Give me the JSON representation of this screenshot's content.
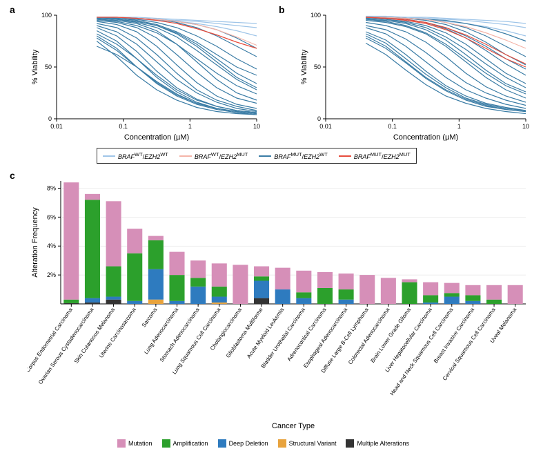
{
  "panels": {
    "a": {
      "label": "a"
    },
    "b": {
      "label": "b"
    },
    "c": {
      "label": "c"
    }
  },
  "lineCharts": {
    "shared": {
      "ylabel": "% Viability",
      "xlabel": "Concentration (µM)",
      "xlim": [
        0.01,
        10
      ],
      "xticks": [
        0.01,
        0.1,
        1,
        10
      ],
      "xticklabels": [
        "0.01",
        "0.1",
        "1",
        "10"
      ],
      "ylim": [
        0,
        100
      ],
      "yticks": [
        0,
        50,
        100
      ],
      "yticklabels": [
        "0",
        "50",
        "100"
      ],
      "scale": "log",
      "background": "#ffffff",
      "axis_color": "#000000",
      "label_fontsize": 11,
      "tick_fontsize": 9
    },
    "colors": {
      "wt_wt": "#9fc5e8",
      "wt_mut": "#f4b4a8",
      "mut_wt": "#3a7ca5",
      "mut_mut": "#e74c3c"
    },
    "a": {
      "series": [
        {
          "color_key": "wt_wt",
          "y": [
            98,
            98,
            97,
            96,
            95,
            94,
            92,
            90,
            88
          ]
        },
        {
          "color_key": "wt_wt",
          "y": [
            98,
            98,
            98,
            97,
            96,
            95,
            94,
            93,
            92
          ]
        },
        {
          "color_key": "wt_wt",
          "y": [
            97,
            97,
            96,
            95,
            94,
            92,
            89,
            85,
            80
          ]
        },
        {
          "color_key": "mut_wt",
          "y": [
            97,
            96,
            94,
            90,
            82,
            70,
            55,
            40,
            30
          ]
        },
        {
          "color_key": "mut_wt",
          "y": [
            96,
            95,
            92,
            85,
            72,
            55,
            38,
            25,
            18
          ]
        },
        {
          "color_key": "mut_wt",
          "y": [
            95,
            93,
            88,
            78,
            62,
            45,
            30,
            20,
            15
          ]
        },
        {
          "color_key": "mut_wt",
          "y": [
            94,
            91,
            84,
            70,
            52,
            35,
            22,
            14,
            10
          ]
        },
        {
          "color_key": "mut_wt",
          "y": [
            92,
            88,
            78,
            62,
            44,
            28,
            18,
            12,
            8
          ]
        },
        {
          "color_key": "mut_wt",
          "y": [
            90,
            84,
            72,
            55,
            38,
            25,
            16,
            10,
            7
          ]
        },
        {
          "color_key": "mut_wt",
          "y": [
            88,
            80,
            65,
            46,
            30,
            19,
            12,
            8,
            6
          ]
        },
        {
          "color_key": "mut_wt",
          "y": [
            85,
            75,
            58,
            40,
            26,
            16,
            10,
            7,
            5
          ]
        },
        {
          "color_key": "mut_wt",
          "y": [
            80,
            68,
            50,
            34,
            22,
            14,
            9,
            6,
            4
          ]
        },
        {
          "color_key": "mut_wt",
          "y": [
            75,
            60,
            42,
            28,
            18,
            11,
            7,
            5,
            4
          ]
        },
        {
          "color_key": "mut_wt",
          "y": [
            98,
            97,
            95,
            91,
            84,
            74,
            62,
            50,
            42
          ]
        },
        {
          "color_key": "mut_wt",
          "y": [
            98,
            97,
            96,
            93,
            88,
            80,
            70,
            58,
            48
          ]
        },
        {
          "color_key": "mut_wt",
          "y": [
            97,
            96,
            93,
            88,
            79,
            66,
            52,
            38,
            28
          ]
        },
        {
          "color_key": "mut_wt",
          "y": [
            98,
            98,
            97,
            96,
            93,
            88,
            80,
            70,
            60
          ]
        },
        {
          "color_key": "mut_wt",
          "y": [
            98,
            98,
            97,
            96,
            94,
            91,
            86,
            78,
            68
          ]
        },
        {
          "color_key": "mut_wt",
          "y": [
            97,
            96,
            94,
            90,
            83,
            72,
            58,
            44,
            34
          ]
        },
        {
          "color_key": "mut_wt",
          "y": [
            96,
            94,
            90,
            83,
            72,
            58,
            44,
            32,
            24
          ]
        },
        {
          "color_key": "mut_wt",
          "y": [
            70,
            62,
            50,
            36,
            24,
            15,
            10,
            7,
            5
          ]
        },
        {
          "color_key": "mut_wt",
          "y": [
            82,
            72,
            58,
            42,
            28,
            18,
            12,
            8,
            6
          ]
        },
        {
          "color_key": "mut_wt",
          "y": [
            78,
            66,
            50,
            35,
            23,
            15,
            10,
            7,
            5
          ]
        },
        {
          "color_key": "wt_mut",
          "y": [
            98,
            98,
            97,
            96,
            94,
            91,
            86,
            79,
            71
          ]
        },
        {
          "color_key": "mut_mut",
          "y": [
            98,
            98,
            97,
            95,
            92,
            87,
            81,
            74,
            68
          ]
        }
      ]
    },
    "b": {
      "series": [
        {
          "color_key": "wt_wt",
          "y": [
            99,
            99,
            98,
            98,
            97,
            96,
            95,
            94,
            92
          ]
        },
        {
          "color_key": "wt_wt",
          "y": [
            98,
            98,
            98,
            97,
            96,
            95,
            93,
            91,
            88
          ]
        },
        {
          "color_key": "wt_wt",
          "y": [
            98,
            98,
            97,
            96,
            94,
            92,
            89,
            85,
            80
          ]
        },
        {
          "color_key": "mut_wt",
          "y": [
            98,
            97,
            96,
            93,
            88,
            80,
            70,
            58,
            48
          ]
        },
        {
          "color_key": "mut_wt",
          "y": [
            97,
            96,
            94,
            90,
            83,
            72,
            58,
            44,
            34
          ]
        },
        {
          "color_key": "mut_wt",
          "y": [
            96,
            95,
            92,
            86,
            76,
            62,
            47,
            34,
            26
          ]
        },
        {
          "color_key": "mut_wt",
          "y": [
            95,
            93,
            89,
            82,
            70,
            55,
            40,
            28,
            20
          ]
        },
        {
          "color_key": "mut_wt",
          "y": [
            93,
            90,
            84,
            74,
            60,
            44,
            31,
            22,
            16
          ]
        },
        {
          "color_key": "mut_wt",
          "y": [
            90,
            86,
            77,
            64,
            49,
            35,
            25,
            18,
            13
          ]
        },
        {
          "color_key": "mut_wt",
          "y": [
            88,
            82,
            70,
            55,
            40,
            28,
            20,
            14,
            10
          ]
        },
        {
          "color_key": "mut_wt",
          "y": [
            84,
            76,
            62,
            46,
            32,
            22,
            15,
            11,
            8
          ]
        },
        {
          "color_key": "mut_wt",
          "y": [
            80,
            70,
            55,
            40,
            28,
            19,
            13,
            9,
            7
          ]
        },
        {
          "color_key": "mut_wt",
          "y": [
            73,
            62,
            47,
            33,
            22,
            15,
            10,
            7,
            5
          ]
        },
        {
          "color_key": "mut_wt",
          "y": [
            98,
            98,
            97,
            95,
            91,
            84,
            74,
            62,
            52
          ]
        },
        {
          "color_key": "mut_wt",
          "y": [
            98,
            98,
            97,
            96,
            93,
            88,
            80,
            70,
            60
          ]
        },
        {
          "color_key": "mut_wt",
          "y": [
            98,
            97,
            96,
            93,
            87,
            78,
            66,
            53,
            42
          ]
        },
        {
          "color_key": "mut_wt",
          "y": [
            97,
            96,
            93,
            88,
            79,
            67,
            53,
            40,
            30
          ]
        },
        {
          "color_key": "mut_wt",
          "y": [
            98,
            98,
            97,
            96,
            95,
            92,
            88,
            82,
            75
          ]
        },
        {
          "color_key": "mut_wt",
          "y": [
            96,
            94,
            90,
            83,
            72,
            58,
            44,
            32,
            24
          ]
        },
        {
          "color_key": "mut_wt",
          "y": [
            78,
            68,
            54,
            39,
            27,
            18,
            12,
            9,
            7
          ]
        },
        {
          "color_key": "mut_wt",
          "y": [
            82,
            73,
            58,
            43,
            30,
            20,
            14,
            10,
            8
          ]
        },
        {
          "color_key": "wt_mut",
          "y": [
            98,
            98,
            97,
            96,
            93,
            89,
            83,
            76,
            68
          ]
        },
        {
          "color_key": "mut_mut",
          "y": [
            98,
            97,
            96,
            93,
            88,
            81,
            72,
            62,
            53
          ]
        },
        {
          "color_key": "mut_mut",
          "y": [
            98,
            97,
            95,
            92,
            86,
            78,
            68,
            58,
            50
          ]
        }
      ]
    }
  },
  "legend": {
    "items": [
      {
        "color_key": "wt_wt",
        "braf": "WT",
        "ezh2": "WT"
      },
      {
        "color_key": "wt_mut",
        "braf": "WT",
        "ezh2": "MUT"
      },
      {
        "color_key": "mut_wt",
        "braf": "MUT",
        "ezh2": "WT"
      },
      {
        "color_key": "mut_mut",
        "braf": "MUT",
        "ezh2": "MUT"
      }
    ],
    "braf_label": "BRAF",
    "ezh2_label": "EZH2",
    "sep": "/"
  },
  "barChart": {
    "ylabel": "Alteration Frequency",
    "xlabel": "Cancer Type",
    "ylim": [
      0,
      8.5
    ],
    "yticks": [
      2,
      4,
      6,
      8
    ],
    "yticklabels": [
      "2%",
      "4%",
      "6%",
      "8%"
    ],
    "label_fontsize": 11,
    "tick_fontsize": 9,
    "background": "#ffffff",
    "grid_color": "#dddddd",
    "colors": {
      "mutation": "#d68fb8",
      "amplification": "#2ca02c",
      "deep_deletion": "#2e7bbf",
      "structural_variant": "#e8a33d",
      "multiple": "#333333"
    },
    "categories": [
      {
        "label": "Uterine Corpus Endometrial Carcinoma",
        "stacks": {
          "mutation": 8.1,
          "amplification": 0.25,
          "deep_deletion": 0,
          "structural_variant": 0,
          "multiple": 0.05
        }
      },
      {
        "label": "Ovarian Serous Cystadenocarcinoma",
        "stacks": {
          "mutation": 0.4,
          "amplification": 6.8,
          "deep_deletion": 0.3,
          "structural_variant": 0,
          "multiple": 0.1
        }
      },
      {
        "label": "Skin Cutaneous Melanoma",
        "stacks": {
          "mutation": 4.5,
          "amplification": 2.1,
          "deep_deletion": 0.2,
          "structural_variant": 0,
          "multiple": 0.3
        }
      },
      {
        "label": "Uterine Carcinosarcoma",
        "stacks": {
          "mutation": 1.7,
          "amplification": 3.3,
          "deep_deletion": 0.2,
          "structural_variant": 0,
          "multiple": 0
        }
      },
      {
        "label": "Sarcoma",
        "stacks": {
          "mutation": 0.3,
          "amplification": 2.0,
          "deep_deletion": 2.1,
          "structural_variant": 0.3,
          "multiple": 0
        }
      },
      {
        "label": "Lung Adenocarcinoma",
        "stacks": {
          "mutation": 1.6,
          "amplification": 1.8,
          "deep_deletion": 0.2,
          "structural_variant": 0,
          "multiple": 0
        }
      },
      {
        "label": "Stomach Adenocarcinoma",
        "stacks": {
          "mutation": 1.2,
          "amplification": 0.6,
          "deep_deletion": 1.2,
          "structural_variant": 0,
          "multiple": 0
        }
      },
      {
        "label": "Lung Squamous Cell Carcinoma",
        "stacks": {
          "mutation": 1.6,
          "amplification": 0.7,
          "deep_deletion": 0.4,
          "structural_variant": 0.1,
          "multiple": 0
        }
      },
      {
        "label": "Cholangiocarcinoma",
        "stacks": {
          "mutation": 2.7,
          "amplification": 0,
          "deep_deletion": 0,
          "structural_variant": 0,
          "multiple": 0
        }
      },
      {
        "label": "Glioblastoma Multiforme",
        "stacks": {
          "mutation": 0.7,
          "amplification": 0.3,
          "deep_deletion": 1.2,
          "structural_variant": 0,
          "multiple": 0.4
        }
      },
      {
        "label": "Acute Myeloid Leukemia",
        "stacks": {
          "mutation": 1.5,
          "amplification": 0,
          "deep_deletion": 1.0,
          "structural_variant": 0,
          "multiple": 0
        }
      },
      {
        "label": "Bladder Urothelial Carcinoma",
        "stacks": {
          "mutation": 1.5,
          "amplification": 0.4,
          "deep_deletion": 0.4,
          "structural_variant": 0,
          "multiple": 0
        }
      },
      {
        "label": "Adrenocortical Carcinoma",
        "stacks": {
          "mutation": 1.1,
          "amplification": 1.1,
          "deep_deletion": 0,
          "structural_variant": 0,
          "multiple": 0
        }
      },
      {
        "label": "Esophageal Adenocarcinoma",
        "stacks": {
          "mutation": 1.1,
          "amplification": 0.7,
          "deep_deletion": 0.3,
          "structural_variant": 0,
          "multiple": 0
        }
      },
      {
        "label": "Diffuse Large B-Cell Lymphoma",
        "stacks": {
          "mutation": 2.0,
          "amplification": 0,
          "deep_deletion": 0,
          "structural_variant": 0,
          "multiple": 0
        }
      },
      {
        "label": "Colorectal Adenocarcinoma",
        "stacks": {
          "mutation": 1.8,
          "amplification": 0,
          "deep_deletion": 0,
          "structural_variant": 0,
          "multiple": 0
        }
      },
      {
        "label": "Brain Lower Grade Glioma",
        "stacks": {
          "mutation": 0.2,
          "amplification": 1.5,
          "deep_deletion": 0,
          "structural_variant": 0,
          "multiple": 0
        }
      },
      {
        "label": "Liver Hepatocellular Carcinoma",
        "stacks": {
          "mutation": 0.9,
          "amplification": 0.5,
          "deep_deletion": 0.1,
          "structural_variant": 0,
          "multiple": 0
        }
      },
      {
        "label": "Head and Neck Squamous Cell Carcinoma",
        "stacks": {
          "mutation": 0.7,
          "amplification": 0.25,
          "deep_deletion": 0.5,
          "structural_variant": 0,
          "multiple": 0
        }
      },
      {
        "label": "Breast Invasive Carcinoma",
        "stacks": {
          "mutation": 0.7,
          "amplification": 0.4,
          "deep_deletion": 0.2,
          "structural_variant": 0,
          "multiple": 0
        }
      },
      {
        "label": "Cervical Squamous Cell Carcinoma",
        "stacks": {
          "mutation": 1.0,
          "amplification": 0.3,
          "deep_deletion": 0,
          "structural_variant": 0,
          "multiple": 0
        }
      },
      {
        "label": "Uveal Melanoma",
        "stacks": {
          "mutation": 1.3,
          "amplification": 0,
          "deep_deletion": 0,
          "structural_variant": 0,
          "multiple": 0
        }
      }
    ],
    "legend_items": [
      {
        "key": "mutation",
        "label": "Mutation"
      },
      {
        "key": "amplification",
        "label": "Amplification"
      },
      {
        "key": "deep_deletion",
        "label": "Deep Deletion"
      },
      {
        "key": "structural_variant",
        "label": "Structural Variant"
      },
      {
        "key": "multiple",
        "label": "Multiple Alterations"
      }
    ]
  }
}
